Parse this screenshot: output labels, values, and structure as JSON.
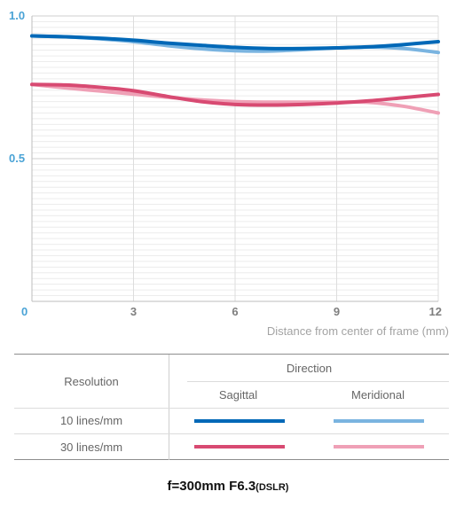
{
  "chart_data": {
    "type": "line",
    "xlabel": "Distance from center of frame (mm)",
    "ylabel": "",
    "xlim": [
      0,
      12
    ],
    "ylim": [
      0,
      1.0
    ],
    "xticks": [
      "0",
      "3",
      "6",
      "9",
      "12"
    ],
    "yticks": [
      "0.5",
      "1.0"
    ],
    "grid": true,
    "series": [
      {
        "name": "10 lines/mm Sagittal",
        "color": "#0068b7",
        "x": [
          0,
          1,
          2,
          3,
          4,
          5,
          6,
          7,
          8,
          9,
          10,
          11,
          12
        ],
        "y": [
          0.93,
          0.927,
          0.922,
          0.915,
          0.905,
          0.897,
          0.89,
          0.886,
          0.886,
          0.888,
          0.892,
          0.9,
          0.91
        ]
      },
      {
        "name": "10 lines/mm Meridional",
        "color": "#7ab4e0",
        "x": [
          0,
          1,
          2,
          3,
          4,
          5,
          6,
          7,
          8,
          9,
          10,
          11,
          12
        ],
        "y": [
          0.93,
          0.927,
          0.92,
          0.91,
          0.896,
          0.885,
          0.878,
          0.877,
          0.882,
          0.888,
          0.891,
          0.886,
          0.872
        ]
      },
      {
        "name": "30 lines/mm Sagittal",
        "color": "#d84a72",
        "x": [
          0,
          1,
          2,
          3,
          4,
          5,
          6,
          7,
          8,
          9,
          10,
          11,
          12
        ],
        "y": [
          0.76,
          0.758,
          0.75,
          0.738,
          0.718,
          0.7,
          0.69,
          0.688,
          0.69,
          0.695,
          0.703,
          0.714,
          0.725
        ]
      },
      {
        "name": "30 lines/mm Meridional",
        "color": "#efa0b6",
        "x": [
          0,
          1,
          2,
          3,
          4,
          5,
          6,
          7,
          8,
          9,
          10,
          11,
          12
        ],
        "y": [
          0.76,
          0.748,
          0.737,
          0.726,
          0.715,
          0.706,
          0.7,
          0.698,
          0.698,
          0.698,
          0.697,
          0.683,
          0.66
        ]
      }
    ]
  },
  "legend": {
    "resolution_header": "Resolution",
    "direction_header": "Direction",
    "sagittal": "Sagittal",
    "meridional": "Meridional",
    "rows": [
      "10 lines/mm",
      "30 lines/mm"
    ],
    "colors": {
      "r10_sag": "#0068b7",
      "r10_mer": "#7ab4e0",
      "r30_sag": "#d84a72",
      "r30_mer": "#efa0b6"
    }
  },
  "caption": {
    "main": "f=300mm F6.3",
    "sub": "(DSLR)"
  }
}
